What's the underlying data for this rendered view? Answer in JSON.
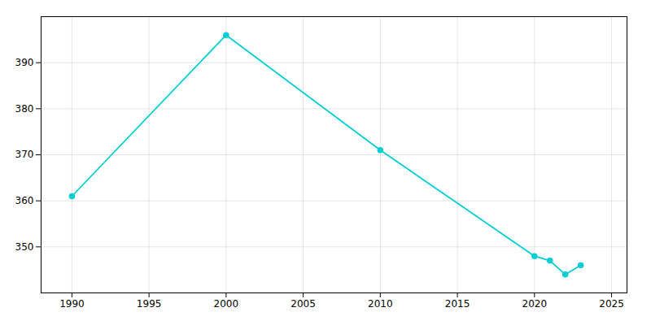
{
  "chart_data": {
    "type": "line",
    "x": [
      1990,
      2000,
      2010,
      2020,
      2021,
      2022,
      2023
    ],
    "values": [
      361,
      396,
      371,
      348,
      347,
      344,
      346
    ],
    "color": "#00CED1",
    "marker": "circle",
    "xlim": [
      1988,
      2026
    ],
    "ylim": [
      340,
      400
    ],
    "xticks": [
      1990,
      1995,
      2000,
      2005,
      2010,
      2015,
      2020,
      2025
    ],
    "yticks": [
      350,
      360,
      370,
      380,
      390
    ],
    "grid": true
  }
}
